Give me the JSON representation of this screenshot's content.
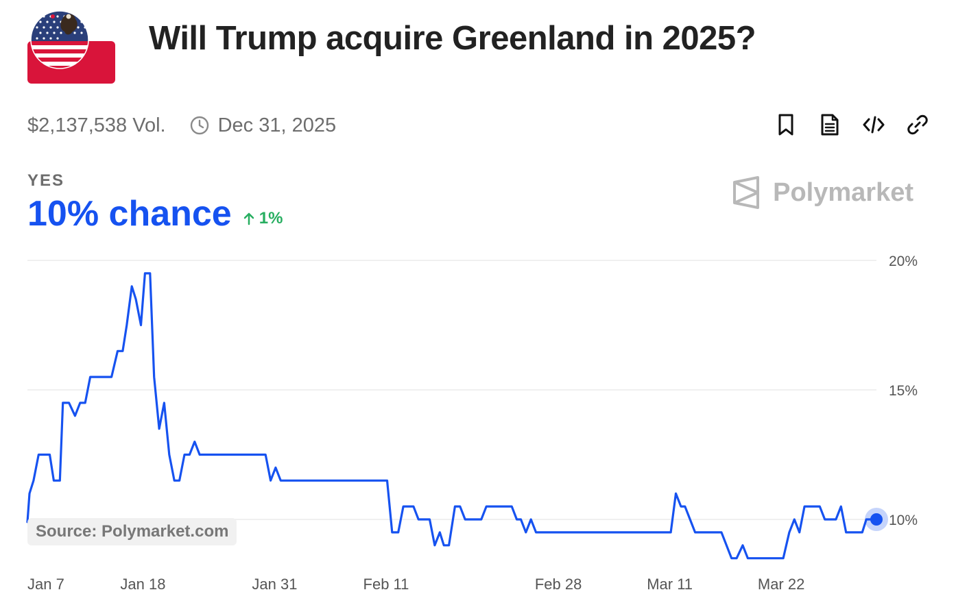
{
  "header": {
    "title": "Will Trump acquire Greenland in 2025?",
    "volume": "$2,137,538 Vol.",
    "end_date": "Dec 31, 2025",
    "logo_icon": "us-flag-eagle-logo"
  },
  "actions": [
    {
      "name": "bookmark-icon"
    },
    {
      "name": "document-icon"
    },
    {
      "name": "embed-code-icon"
    },
    {
      "name": "link-icon"
    }
  ],
  "outcome": {
    "label": "YES",
    "chance": "10% chance",
    "change": "1%",
    "change_direction": "up"
  },
  "brand": {
    "name": "Polymarket",
    "source": "Source: Polymarket.com"
  },
  "colors": {
    "line": "#1652f0",
    "positive": "#27ae60",
    "grid": "#ececec",
    "muted": "#6d6d6d"
  },
  "chart_data": {
    "type": "line",
    "title": "",
    "xlabel": "",
    "ylabel": "",
    "ylim": [
      8,
      20
    ],
    "y_ticks": [
      {
        "value": 20,
        "label": "20%"
      },
      {
        "value": 15,
        "label": "15%"
      },
      {
        "value": 10,
        "label": "10%"
      }
    ],
    "x_ticks": [
      {
        "day": 7,
        "label": "Jan 7"
      },
      {
        "day": 18,
        "label": "Jan 18"
      },
      {
        "day": 31,
        "label": "Jan 31"
      },
      {
        "day": 42,
        "label": "Feb 11"
      },
      {
        "day": 59,
        "label": "Feb 28"
      },
      {
        "day": 70,
        "label": "Mar 11"
      },
      {
        "day": 81,
        "label": "Mar 22"
      }
    ],
    "grid": true,
    "series": [
      {
        "name": "",
        "points": [
          [
            6.6,
            9.9
          ],
          [
            6.8,
            11.0
          ],
          [
            7.2,
            11.5
          ],
          [
            7.7,
            12.5
          ],
          [
            8.8,
            12.5
          ],
          [
            9.2,
            11.5
          ],
          [
            9.8,
            11.5
          ],
          [
            10.1,
            14.5
          ],
          [
            10.7,
            14.5
          ],
          [
            11.3,
            14.0
          ],
          [
            11.8,
            14.5
          ],
          [
            12.3,
            14.5
          ],
          [
            12.8,
            15.5
          ],
          [
            13.5,
            15.5
          ],
          [
            14.9,
            15.5
          ],
          [
            15.5,
            16.5
          ],
          [
            16.0,
            16.5
          ],
          [
            16.4,
            17.5
          ],
          [
            16.9,
            19.0
          ],
          [
            17.3,
            18.5
          ],
          [
            17.8,
            17.5
          ],
          [
            18.2,
            19.5
          ],
          [
            18.7,
            19.5
          ],
          [
            19.1,
            15.5
          ],
          [
            19.6,
            13.5
          ],
          [
            20.1,
            14.5
          ],
          [
            20.6,
            12.5
          ],
          [
            21.1,
            11.5
          ],
          [
            21.6,
            11.5
          ],
          [
            22.1,
            12.5
          ],
          [
            22.6,
            12.5
          ],
          [
            23.1,
            13.0
          ],
          [
            23.6,
            12.5
          ],
          [
            29.5,
            12.5
          ],
          [
            30.1,
            12.5
          ],
          [
            30.6,
            11.5
          ],
          [
            31.1,
            12.0
          ],
          [
            31.6,
            11.5
          ],
          [
            42.1,
            11.5
          ],
          [
            42.6,
            9.5
          ],
          [
            43.2,
            9.5
          ],
          [
            43.7,
            10.5
          ],
          [
            44.7,
            10.5
          ],
          [
            45.2,
            10.0
          ],
          [
            46.3,
            10.0
          ],
          [
            46.8,
            9.0
          ],
          [
            47.3,
            9.5
          ],
          [
            47.7,
            9.0
          ],
          [
            48.2,
            9.0
          ],
          [
            48.8,
            10.5
          ],
          [
            49.3,
            10.5
          ],
          [
            49.8,
            10.0
          ],
          [
            51.4,
            10.0
          ],
          [
            51.9,
            10.5
          ],
          [
            54.4,
            10.5
          ],
          [
            54.9,
            10.0
          ],
          [
            55.3,
            10.0
          ],
          [
            55.8,
            9.5
          ],
          [
            56.3,
            10.0
          ],
          [
            56.8,
            9.5
          ],
          [
            70.1,
            9.5
          ],
          [
            70.6,
            11.0
          ],
          [
            71.1,
            10.5
          ],
          [
            71.5,
            10.5
          ],
          [
            72.5,
            9.5
          ],
          [
            75.1,
            9.5
          ],
          [
            76.1,
            8.5
          ],
          [
            76.6,
            8.5
          ],
          [
            77.2,
            9.0
          ],
          [
            77.7,
            8.5
          ],
          [
            81.2,
            8.5
          ],
          [
            81.8,
            9.5
          ],
          [
            82.3,
            10.0
          ],
          [
            82.8,
            9.5
          ],
          [
            83.3,
            10.5
          ],
          [
            84.8,
            10.5
          ],
          [
            85.3,
            10.0
          ],
          [
            86.4,
            10.0
          ],
          [
            86.9,
            10.5
          ],
          [
            87.4,
            9.5
          ],
          [
            89.0,
            9.5
          ],
          [
            89.4,
            10.0
          ],
          [
            90.4,
            10.0
          ]
        ]
      }
    ]
  }
}
